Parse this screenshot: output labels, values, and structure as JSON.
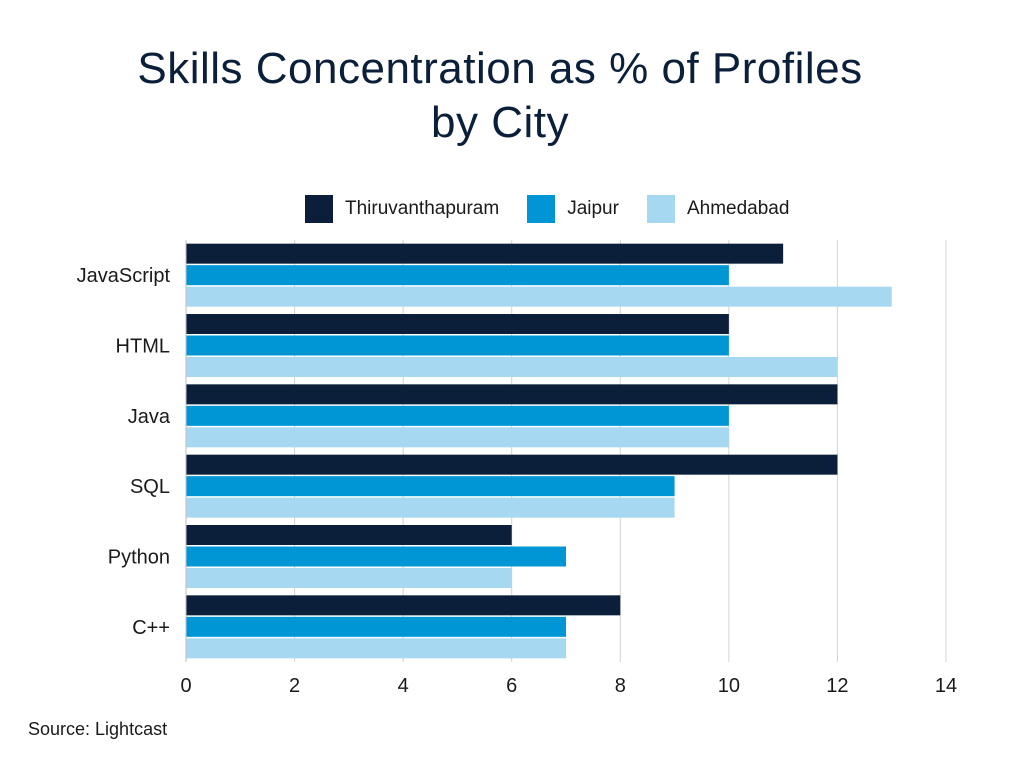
{
  "chart_data": {
    "type": "bar",
    "orientation": "horizontal",
    "title_lines": [
      "Skills Concentration as % of Profiles",
      "by City"
    ],
    "categories": [
      "JavaScript",
      "HTML",
      "Java",
      "SQL",
      "Python",
      "C++"
    ],
    "series": [
      {
        "name": "Thiruvanthapuram",
        "color": "#0b1f3a",
        "values": [
          11,
          10,
          12,
          12,
          6,
          8
        ]
      },
      {
        "name": "Jaipur",
        "color": "#0096d6",
        "values": [
          10,
          10,
          10,
          9,
          7,
          7
        ]
      },
      {
        "name": "Ahmedabad",
        "color": "#a6d8f2",
        "values": [
          13,
          12,
          10,
          9,
          6,
          7
        ]
      }
    ],
    "xlim": [
      0,
      14
    ],
    "xticks": [
      0,
      2,
      4,
      6,
      8,
      10,
      12,
      14
    ],
    "grid": "vertical",
    "legend_position": "top"
  },
  "source": "Source: Lightcast"
}
